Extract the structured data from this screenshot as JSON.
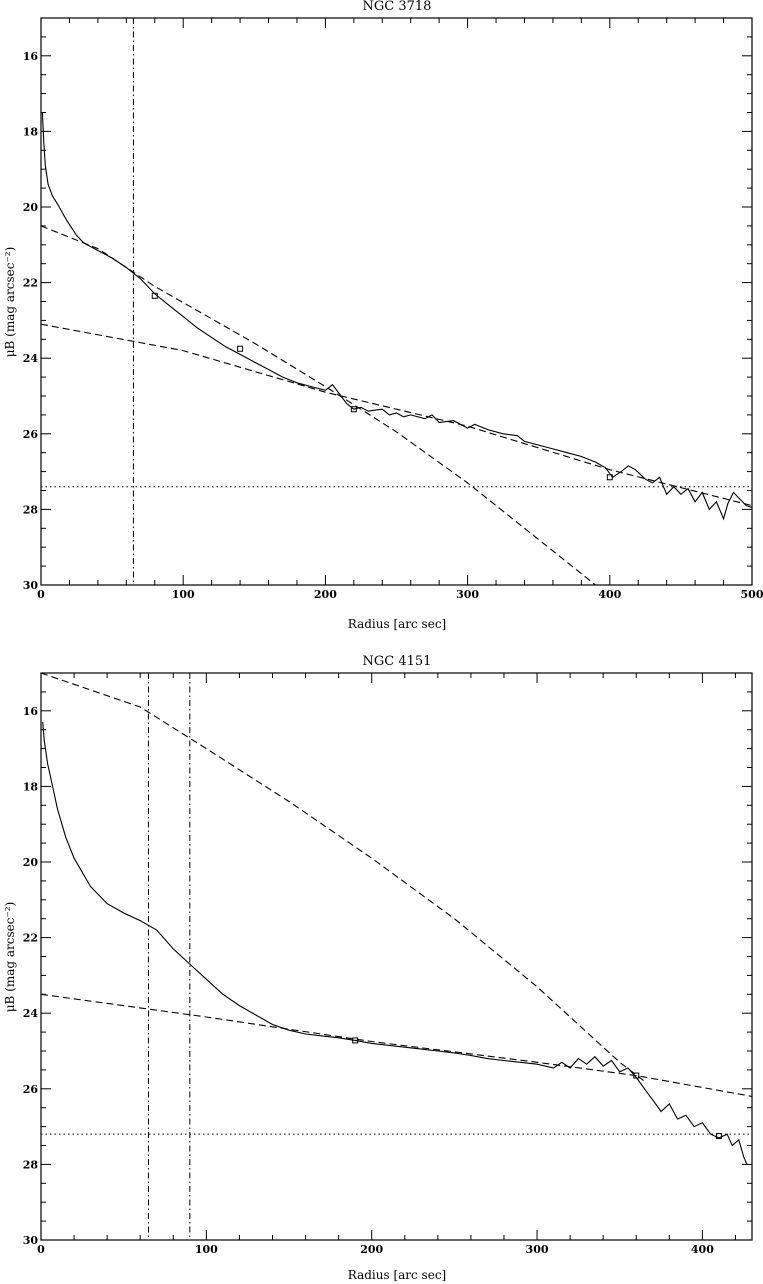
{
  "chart_data": [
    {
      "type": "line",
      "title": "NGC 3718",
      "xlabel": "Radius [arc sec]",
      "ylabel": "μB (mag arcsec⁻²)",
      "xlim": [
        0,
        500
      ],
      "ylim": [
        30,
        15
      ],
      "y_inverted": true,
      "xticks": [
        0,
        100,
        200,
        300,
        400,
        500
      ],
      "yticks": [
        16,
        18,
        20,
        22,
        24,
        26,
        28,
        30
      ],
      "series": [
        {
          "style": "solid",
          "points": [
            [
              1,
              17.5
            ],
            [
              2,
              18.3
            ],
            [
              3,
              18.9
            ],
            [
              5,
              19.4
            ],
            [
              8,
              19.7
            ],
            [
              12,
              19.95
            ],
            [
              18,
              20.35
            ],
            [
              25,
              20.75
            ],
            [
              30,
              20.95
            ],
            [
              40,
              21.15
            ],
            [
              50,
              21.35
            ],
            [
              60,
              21.6
            ],
            [
              70,
              21.9
            ],
            [
              80,
              22.3
            ],
            [
              90,
              22.6
            ],
            [
              100,
              22.9
            ],
            [
              110,
              23.2
            ],
            [
              120,
              23.45
            ],
            [
              130,
              23.7
            ],
            [
              140,
              23.9
            ],
            [
              150,
              24.1
            ],
            [
              160,
              24.3
            ],
            [
              170,
              24.5
            ],
            [
              180,
              24.65
            ],
            [
              190,
              24.75
            ],
            [
              200,
              24.85
            ],
            [
              205,
              24.7
            ],
            [
              210,
              24.95
            ],
            [
              215,
              25.2
            ],
            [
              220,
              25.35
            ],
            [
              225,
              25.3
            ],
            [
              230,
              25.4
            ],
            [
              240,
              25.35
            ],
            [
              245,
              25.5
            ],
            [
              250,
              25.45
            ],
            [
              255,
              25.55
            ],
            [
              260,
              25.5
            ],
            [
              270,
              25.6
            ],
            [
              275,
              25.5
            ],
            [
              280,
              25.7
            ],
            [
              290,
              25.65
            ],
            [
              300,
              25.85
            ],
            [
              305,
              25.75
            ],
            [
              315,
              25.9
            ],
            [
              325,
              26.0
            ],
            [
              335,
              26.05
            ],
            [
              340,
              26.2
            ],
            [
              350,
              26.3
            ],
            [
              360,
              26.4
            ],
            [
              370,
              26.5
            ],
            [
              380,
              26.6
            ],
            [
              390,
              26.75
            ],
            [
              397,
              26.9
            ],
            [
              402,
              27.15
            ],
            [
              408,
              27.0
            ],
            [
              413,
              26.85
            ],
            [
              418,
              26.95
            ],
            [
              425,
              27.2
            ],
            [
              430,
              27.3
            ],
            [
              435,
              27.15
            ],
            [
              440,
              27.6
            ],
            [
              445,
              27.4
            ],
            [
              450,
              27.6
            ],
            [
              455,
              27.45
            ],
            [
              460,
              27.8
            ],
            [
              465,
              27.55
            ],
            [
              470,
              28.0
            ],
            [
              475,
              27.8
            ],
            [
              480,
              28.25
            ],
            [
              483,
              27.85
            ],
            [
              487,
              27.55
            ],
            [
              492,
              27.75
            ],
            [
              496,
              27.9
            ],
            [
              500,
              27.95
            ]
          ]
        },
        {
          "style": "dashed",
          "points": [
            [
              0,
              20.5
            ],
            [
              40,
              21.1
            ],
            [
              80,
              22.1
            ],
            [
              150,
              23.6
            ],
            [
              200,
              24.75
            ],
            [
              250,
              25.95
            ],
            [
              300,
              27.3
            ],
            [
              350,
              28.8
            ],
            [
              390,
              30.0
            ]
          ]
        },
        {
          "style": "dashed",
          "points": [
            [
              0,
              23.1
            ],
            [
              100,
              23.8
            ],
            [
              200,
              24.9
            ],
            [
              300,
              25.8
            ],
            [
              400,
              26.95
            ],
            [
              500,
              27.9
            ]
          ]
        }
      ],
      "markers": [
        [
          80,
          22.35
        ],
        [
          140,
          23.75
        ],
        [
          220,
          25.35
        ],
        [
          400,
          27.15
        ]
      ],
      "hlines": [
        {
          "y": 27.4,
          "style": "dotted"
        }
      ],
      "vlines": [
        {
          "x": 65,
          "style": "dashdot"
        }
      ],
      "grid": false
    },
    {
      "type": "line",
      "title": "NGC 4151",
      "xlabel": "Radius [arc sec]",
      "ylabel": "μB (mag arcsec⁻²)",
      "xlim": [
        0,
        430
      ],
      "ylim": [
        30,
        15
      ],
      "y_inverted": true,
      "xticks": [
        0,
        100,
        200,
        300,
        400
      ],
      "yticks": [
        16,
        18,
        20,
        22,
        24,
        26,
        28,
        30
      ],
      "series": [
        {
          "style": "solid",
          "points": [
            [
              1,
              16.3
            ],
            [
              2,
              16.8
            ],
            [
              4,
              17.4
            ],
            [
              7,
              18.0
            ],
            [
              10,
              18.6
            ],
            [
              15,
              19.35
            ],
            [
              20,
              19.9
            ],
            [
              30,
              20.65
            ],
            [
              40,
              21.1
            ],
            [
              50,
              21.35
            ],
            [
              60,
              21.55
            ],
            [
              70,
              21.8
            ],
            [
              80,
              22.3
            ],
            [
              90,
              22.7
            ],
            [
              100,
              23.1
            ],
            [
              110,
              23.5
            ],
            [
              120,
              23.8
            ],
            [
              130,
              24.05
            ],
            [
              140,
              24.3
            ],
            [
              150,
              24.45
            ],
            [
              160,
              24.55
            ],
            [
              170,
              24.6
            ],
            [
              180,
              24.65
            ],
            [
              190,
              24.72
            ],
            [
              200,
              24.8
            ],
            [
              210,
              24.85
            ],
            [
              220,
              24.9
            ],
            [
              230,
              24.95
            ],
            [
              240,
              25.0
            ],
            [
              250,
              25.05
            ],
            [
              260,
              25.12
            ],
            [
              270,
              25.2
            ],
            [
              280,
              25.25
            ],
            [
              290,
              25.3
            ],
            [
              300,
              25.35
            ],
            [
              310,
              25.45
            ],
            [
              315,
              25.3
            ],
            [
              320,
              25.45
            ],
            [
              325,
              25.2
            ],
            [
              330,
              25.35
            ],
            [
              335,
              25.15
            ],
            [
              340,
              25.4
            ],
            [
              345,
              25.25
            ],
            [
              350,
              25.55
            ],
            [
              355,
              25.45
            ],
            [
              360,
              25.7
            ],
            [
              365,
              26.0
            ],
            [
              370,
              26.3
            ],
            [
              375,
              26.6
            ],
            [
              380,
              26.4
            ],
            [
              385,
              26.8
            ],
            [
              390,
              26.7
            ],
            [
              395,
              27.0
            ],
            [
              400,
              26.9
            ],
            [
              405,
              27.2
            ],
            [
              410,
              27.3
            ],
            [
              415,
              27.2
            ],
            [
              418,
              27.5
            ],
            [
              422,
              27.35
            ],
            [
              425,
              27.8
            ],
            [
              427,
              28.0
            ]
          ]
        },
        {
          "style": "dashed",
          "points": [
            [
              0,
              14.8
            ],
            [
              60,
              15.9
            ],
            [
              100,
              17.0
            ],
            [
              150,
              18.4
            ],
            [
              200,
              19.9
            ],
            [
              250,
              21.5
            ],
            [
              300,
              23.3
            ],
            [
              350,
              25.3
            ],
            [
              365,
              25.8
            ]
          ]
        },
        {
          "style": "dashed",
          "points": [
            [
              0,
              23.5
            ],
            [
              100,
              24.1
            ],
            [
              200,
              24.75
            ],
            [
              300,
              25.3
            ],
            [
              360,
              25.65
            ],
            [
              430,
              26.2
            ]
          ]
        }
      ],
      "markers": [
        [
          190,
          24.72
        ],
        [
          360,
          25.65
        ],
        [
          410,
          27.25
        ]
      ],
      "hlines": [
        {
          "y": 27.2,
          "style": "dotted"
        }
      ],
      "vlines": [
        {
          "x": 65,
          "style": "dashdot"
        },
        {
          "x": 90,
          "style": "dashdot"
        }
      ],
      "grid": false
    }
  ]
}
